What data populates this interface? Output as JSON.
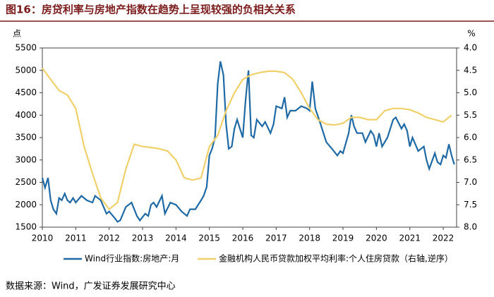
{
  "chart_data": {
    "type": "line",
    "title": "图16：房贷利率与房地产指数在趋势上呈现较强的负相关关系",
    "y_unit": "点",
    "y2_unit": "%",
    "source": "数据来源：Wind，广发证券发展研究中心",
    "xlim": [
      2010,
      2022.4
    ],
    "xticks": [
      2010,
      2011,
      2012,
      2013,
      2014,
      2015,
      2016,
      2017,
      2018,
      2019,
      2020,
      2021,
      2022
    ],
    "ylim": [
      1500,
      5500
    ],
    "yticks": [
      1500,
      2000,
      2500,
      3000,
      3500,
      4000,
      4500,
      5000,
      5500
    ],
    "y2lim": [
      4,
      8
    ],
    "y2_inverted": true,
    "y2ticks": [
      {
        "value": 4,
        "label": "4.0"
      },
      4.5,
      {
        "value": 5,
        "label": "5.0"
      },
      5.5,
      {
        "value": 6,
        "label": "6.0"
      },
      6.5,
      {
        "value": 7,
        "label": "7.0"
      },
      7.5,
      {
        "value": 8,
        "label": "8.0"
      }
    ],
    "legend": "bottom",
    "series": [
      {
        "name": "Wind行业指数:房地产:月",
        "color": "#1f6aa5",
        "axis": "y",
        "x": [
          2010.0,
          2010.08,
          2010.17,
          2010.25,
          2010.33,
          2010.42,
          2010.5,
          2010.58,
          2010.67,
          2010.75,
          2010.83,
          2010.92,
          2011.0,
          2011.17,
          2011.33,
          2011.5,
          2011.58,
          2011.75,
          2011.92,
          2012.0,
          2012.17,
          2012.25,
          2012.33,
          2012.5,
          2012.67,
          2012.83,
          2012.92,
          2013.08,
          2013.17,
          2013.25,
          2013.33,
          2013.42,
          2013.58,
          2013.67,
          2013.83,
          2014.0,
          2014.17,
          2014.33,
          2014.42,
          2014.58,
          2014.75,
          2014.83,
          2014.92,
          2015.0,
          2015.08,
          2015.17,
          2015.25,
          2015.33,
          2015.42,
          2015.5,
          2015.58,
          2015.67,
          2015.75,
          2015.83,
          2016.0,
          2016.08,
          2016.17,
          2016.25,
          2016.33,
          2016.42,
          2016.58,
          2016.67,
          2016.83,
          2016.92,
          2017.0,
          2017.17,
          2017.25,
          2017.33,
          2017.42,
          2017.58,
          2017.75,
          2017.92,
          2018.0,
          2018.08,
          2018.17,
          2018.33,
          2018.5,
          2018.67,
          2018.83,
          2018.92,
          2019.0,
          2019.17,
          2019.25,
          2019.33,
          2019.42,
          2019.58,
          2019.67,
          2019.83,
          2019.92,
          2020.0,
          2020.08,
          2020.17,
          2020.33,
          2020.5,
          2020.58,
          2020.75,
          2020.83,
          2020.92,
          2021.0,
          2021.08,
          2021.25,
          2021.42,
          2021.5,
          2021.58,
          2021.75,
          2021.83,
          2021.92,
          2022.0,
          2022.08,
          2022.17,
          2022.25,
          2022.33
        ],
        "values": [
          2600,
          2380,
          2600,
          2100,
          1900,
          1800,
          2150,
          2100,
          2250,
          2100,
          2050,
          2150,
          2050,
          2200,
          2100,
          2050,
          2200,
          2100,
          1800,
          1850,
          1700,
          1620,
          1650,
          1950,
          2050,
          1750,
          1650,
          1800,
          1750,
          2000,
          2050,
          1950,
          2200,
          1800,
          2050,
          2000,
          1850,
          1750,
          1900,
          1900,
          2100,
          2200,
          2400,
          3100,
          3250,
          3500,
          4700,
          5200,
          4900,
          3800,
          3250,
          3300,
          3700,
          3900,
          3500,
          4300,
          5000,
          3550,
          3500,
          3900,
          3750,
          3850,
          3600,
          3800,
          4200,
          4150,
          4400,
          3950,
          4100,
          4100,
          4200,
          4150,
          4100,
          4750,
          4150,
          3800,
          3400,
          3250,
          3100,
          3200,
          3150,
          3600,
          4000,
          3750,
          3600,
          3600,
          3400,
          3650,
          3550,
          3300,
          3600,
          3300,
          3500,
          3900,
          3950,
          3700,
          3800,
          3650,
          3300,
          3500,
          3200,
          3300,
          3000,
          2800,
          3150,
          2950,
          2900,
          3100,
          3050,
          3350,
          3100,
          2900
        ]
      },
      {
        "name": "金融机构人民币贷款加权平均利率:个人住房贷款（右轴,逆序）",
        "color": "#f0d06a",
        "axis": "y2",
        "x": [
          2010.0,
          2010.25,
          2010.5,
          2010.75,
          2011.0,
          2011.25,
          2011.5,
          2011.75,
          2012.0,
          2012.25,
          2012.5,
          2012.75,
          2013.0,
          2013.25,
          2013.5,
          2013.75,
          2014.0,
          2014.25,
          2014.5,
          2014.75,
          2015.0,
          2015.25,
          2015.5,
          2015.75,
          2016.0,
          2016.25,
          2016.5,
          2016.75,
          2017.0,
          2017.25,
          2017.5,
          2017.75,
          2018.0,
          2018.25,
          2018.5,
          2018.75,
          2019.0,
          2019.25,
          2019.5,
          2019.75,
          2020.0,
          2020.25,
          2020.5,
          2020.75,
          2021.0,
          2021.25,
          2021.5,
          2021.75,
          2022.0,
          2022.25
        ],
        "values": [
          4.45,
          4.7,
          4.95,
          5.05,
          5.35,
          6.2,
          6.8,
          7.35,
          7.6,
          7.45,
          6.7,
          6.15,
          6.2,
          6.22,
          6.25,
          6.3,
          6.5,
          6.9,
          6.95,
          6.9,
          6.2,
          5.95,
          5.4,
          5.0,
          4.7,
          4.6,
          4.55,
          4.52,
          4.52,
          4.55,
          4.7,
          5.0,
          5.35,
          5.6,
          5.7,
          5.72,
          5.68,
          5.55,
          5.55,
          5.6,
          5.6,
          5.4,
          5.35,
          5.35,
          5.38,
          5.45,
          5.55,
          5.6,
          5.65,
          5.5
        ]
      }
    ]
  }
}
